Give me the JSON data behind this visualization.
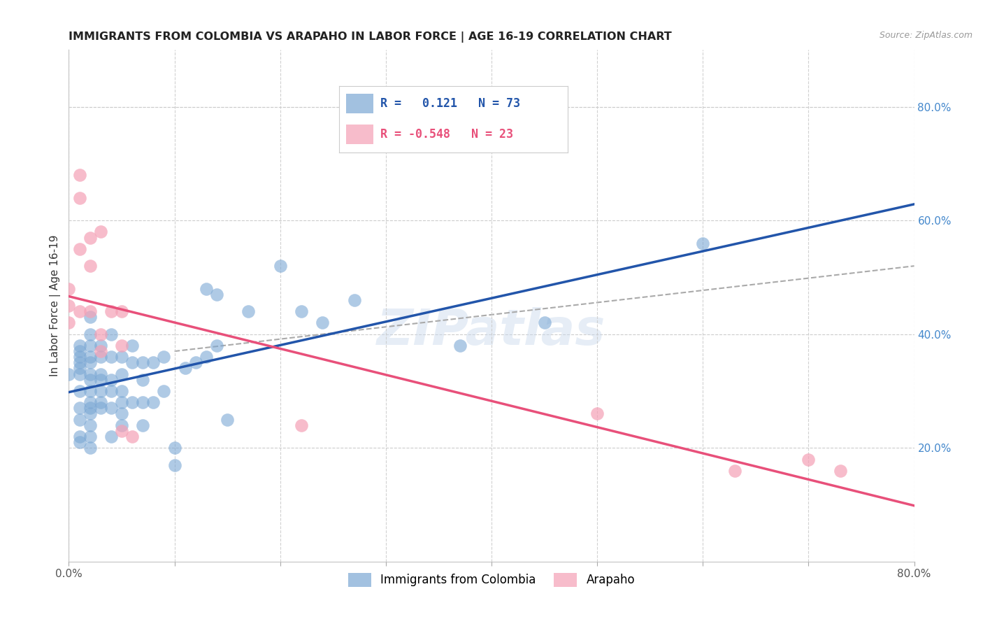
{
  "title": "IMMIGRANTS FROM COLOMBIA VS ARAPAHO IN LABOR FORCE | AGE 16-19 CORRELATION CHART",
  "source": "Source: ZipAtlas.com",
  "ylabel": "In Labor Force | Age 16-19",
  "xlim": [
    0.0,
    0.8
  ],
  "ylim": [
    0.0,
    0.9
  ],
  "xtick_positions": [
    0.0,
    0.1,
    0.2,
    0.3,
    0.4,
    0.5,
    0.6,
    0.7,
    0.8
  ],
  "xticklabels": [
    "0.0%",
    "",
    "",
    "",
    "",
    "",
    "",
    "",
    "80.0%"
  ],
  "yticks_right": [
    0.2,
    0.4,
    0.6,
    0.8
  ],
  "ytick_right_labels": [
    "20.0%",
    "40.0%",
    "60.0%",
    "80.0%"
  ],
  "colombia_R": 0.121,
  "colombia_N": 73,
  "arapaho_R": -0.548,
  "arapaho_N": 23,
  "colombia_color": "#7ba7d4",
  "arapaho_color": "#f4a0b5",
  "colombia_line_color": "#2255aa",
  "arapaho_line_color": "#e8507a",
  "watermark": "ZIPatlas",
  "colombia_x": [
    0.0,
    0.01,
    0.01,
    0.01,
    0.01,
    0.01,
    0.01,
    0.01,
    0.01,
    0.01,
    0.01,
    0.01,
    0.02,
    0.02,
    0.02,
    0.02,
    0.02,
    0.02,
    0.02,
    0.02,
    0.02,
    0.02,
    0.02,
    0.02,
    0.02,
    0.02,
    0.03,
    0.03,
    0.03,
    0.03,
    0.03,
    0.03,
    0.03,
    0.04,
    0.04,
    0.04,
    0.04,
    0.04,
    0.04,
    0.05,
    0.05,
    0.05,
    0.05,
    0.05,
    0.05,
    0.06,
    0.06,
    0.06,
    0.07,
    0.07,
    0.07,
    0.07,
    0.08,
    0.08,
    0.09,
    0.09,
    0.1,
    0.1,
    0.11,
    0.12,
    0.13,
    0.13,
    0.14,
    0.14,
    0.15,
    0.17,
    0.2,
    0.22,
    0.24,
    0.27,
    0.37,
    0.45,
    0.6
  ],
  "colombia_y": [
    0.33,
    0.3,
    0.33,
    0.34,
    0.35,
    0.36,
    0.37,
    0.38,
    0.27,
    0.25,
    0.22,
    0.21,
    0.43,
    0.4,
    0.38,
    0.36,
    0.35,
    0.33,
    0.32,
    0.3,
    0.28,
    0.27,
    0.26,
    0.24,
    0.22,
    0.2,
    0.38,
    0.36,
    0.33,
    0.32,
    0.3,
    0.28,
    0.27,
    0.4,
    0.36,
    0.32,
    0.3,
    0.27,
    0.22,
    0.36,
    0.33,
    0.3,
    0.28,
    0.26,
    0.24,
    0.38,
    0.35,
    0.28,
    0.35,
    0.32,
    0.28,
    0.24,
    0.35,
    0.28,
    0.36,
    0.3,
    0.2,
    0.17,
    0.34,
    0.35,
    0.48,
    0.36,
    0.47,
    0.38,
    0.25,
    0.44,
    0.52,
    0.44,
    0.42,
    0.46,
    0.38,
    0.42,
    0.56
  ],
  "arapaho_x": [
    0.0,
    0.0,
    0.0,
    0.01,
    0.01,
    0.01,
    0.01,
    0.02,
    0.02,
    0.02,
    0.03,
    0.03,
    0.03,
    0.04,
    0.05,
    0.05,
    0.05,
    0.06,
    0.22,
    0.5,
    0.63,
    0.7,
    0.73
  ],
  "arapaho_y": [
    0.45,
    0.42,
    0.48,
    0.68,
    0.64,
    0.55,
    0.44,
    0.57,
    0.52,
    0.44,
    0.4,
    0.37,
    0.58,
    0.44,
    0.44,
    0.38,
    0.23,
    0.22,
    0.24,
    0.26,
    0.16,
    0.18,
    0.16
  ]
}
